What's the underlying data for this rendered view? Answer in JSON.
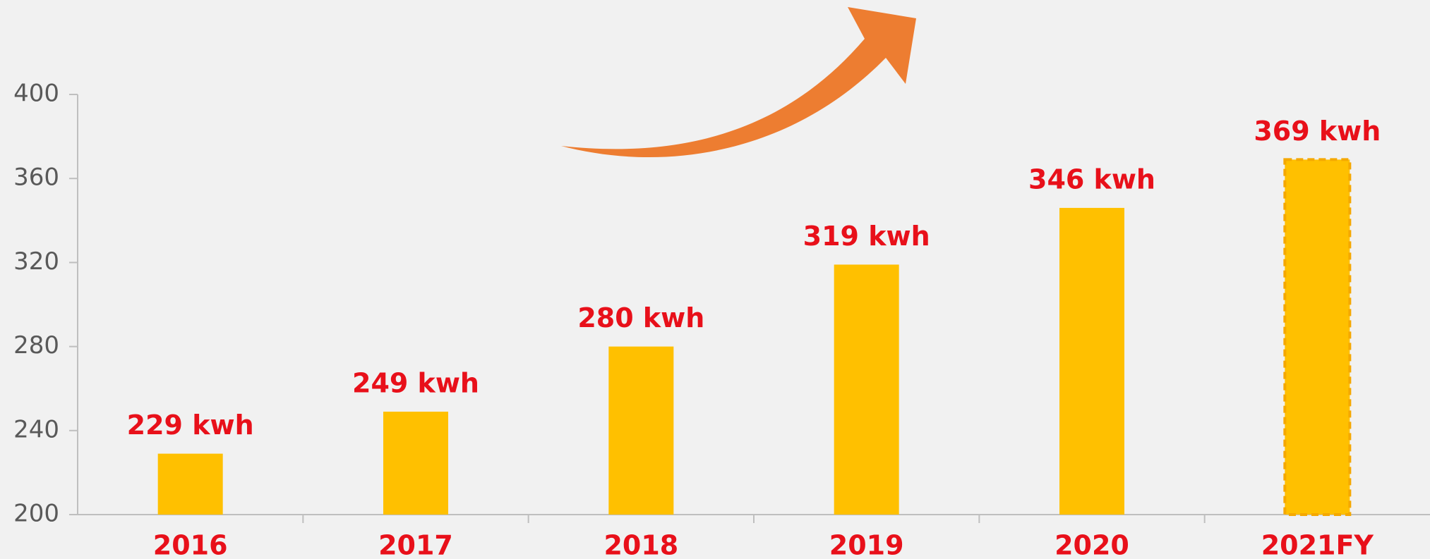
{
  "chart_data": {
    "type": "bar",
    "categories": [
      "2016",
      "2017",
      "2018",
      "2019",
      "2020",
      "2021FY"
    ],
    "values": [
      229,
      249,
      280,
      319,
      346,
      369
    ],
    "value_labels": [
      "229 kwh",
      "249 kwh",
      "280 kwh",
      "319 kwh",
      "346 kwh",
      "369 kwh"
    ],
    "color": "#ffc000",
    "label_color": "#e8101a",
    "dashed_last": true,
    "ylim": [
      200,
      400
    ],
    "yticks": [
      200,
      240,
      280,
      320,
      360,
      400
    ],
    "grid": false
  }
}
